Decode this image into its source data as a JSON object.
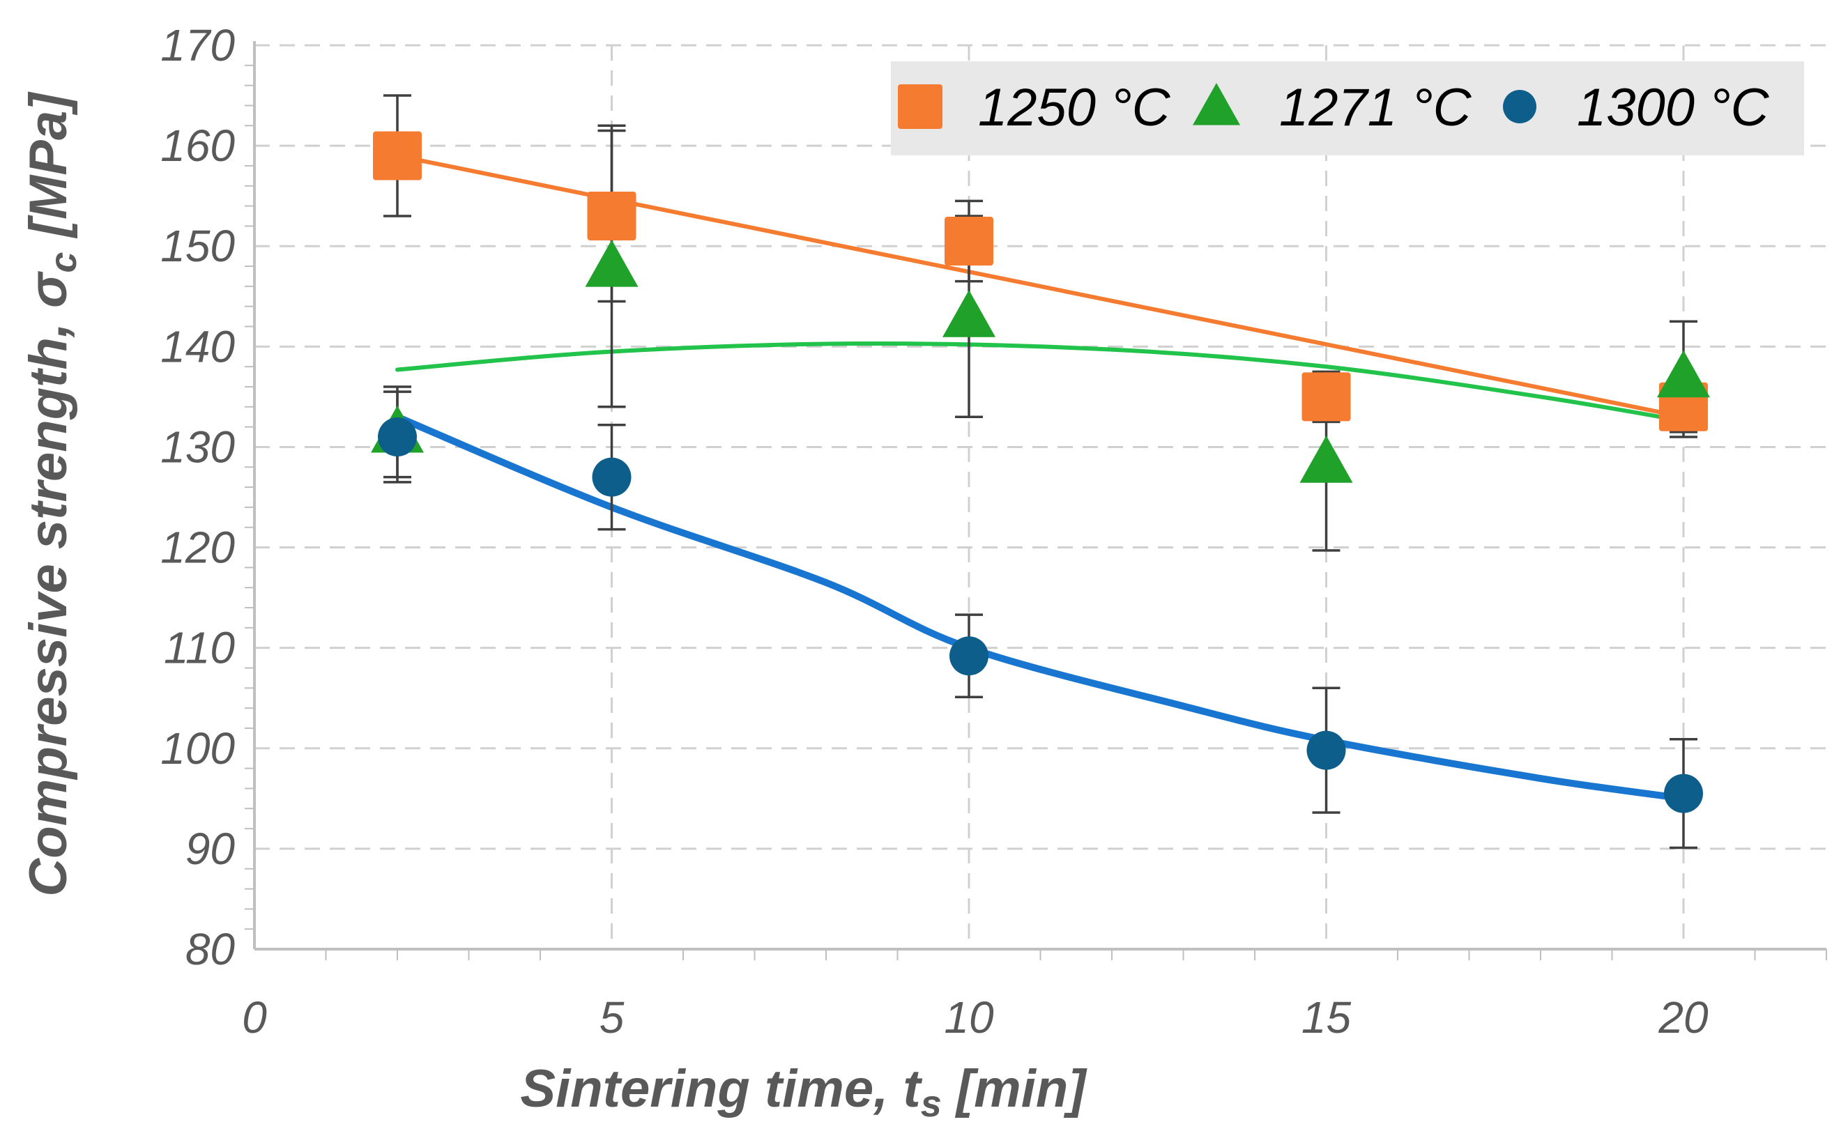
{
  "chart_data": {
    "type": "scatter",
    "title": "",
    "xlabel": {
      "main": "Sintering time, t",
      "sub": "s",
      "unit": " [min]"
    },
    "ylabel": {
      "main": "Compressive strength, σ",
      "sub": "c",
      "unit": " [MPa]"
    },
    "xlim": [
      0,
      22
    ],
    "ylim": [
      80,
      170
    ],
    "x_ticks": [
      0,
      5,
      10,
      15,
      20
    ],
    "y_ticks": [
      80,
      90,
      100,
      110,
      120,
      130,
      140,
      150,
      160,
      170
    ],
    "grid": true,
    "legend_position": "top-right",
    "series": [
      {
        "name": "1250 °C",
        "marker": "square",
        "color": "#F47B2F",
        "line_color": "#F47B2F",
        "x": [
          2,
          5,
          10,
          15,
          20
        ],
        "y": [
          159,
          153,
          150.5,
          135,
          134
        ],
        "error": [
          6,
          8.5,
          4,
          2.5,
          3
        ],
        "trend": [
          [
            2,
            159
          ],
          [
            20,
            133
          ]
        ]
      },
      {
        "name": "1271 °C",
        "marker": "triangle",
        "color": "#1FA12A",
        "line_color": "#22C34A",
        "x": [
          2,
          5,
          10,
          15,
          20
        ],
        "y": [
          131.5,
          148,
          143,
          128.5,
          137
        ],
        "error": [
          4.5,
          14,
          10,
          8.8,
          5.5
        ],
        "trend": [
          [
            2,
            137.7
          ],
          [
            5,
            139.5
          ],
          [
            8.5,
            140.3
          ],
          [
            12,
            139.7
          ],
          [
            15,
            138
          ],
          [
            18,
            135
          ],
          [
            20,
            132.6
          ]
        ]
      },
      {
        "name": "1300 °C",
        "marker": "circle",
        "color": "#0E5E8C",
        "line_color": "#1875D0",
        "x": [
          2,
          5,
          10,
          15,
          20
        ],
        "y": [
          131,
          127,
          109.2,
          99.8,
          95.5
        ],
        "error": [
          4.5,
          5.2,
          4.1,
          6.2,
          5.4
        ],
        "trend": [
          [
            2,
            133
          ],
          [
            5,
            124
          ],
          [
            8,
            116.5
          ],
          [
            10,
            110
          ],
          [
            13,
            104.2
          ],
          [
            15,
            100.8
          ],
          [
            18,
            97
          ],
          [
            20,
            95
          ]
        ]
      }
    ]
  }
}
